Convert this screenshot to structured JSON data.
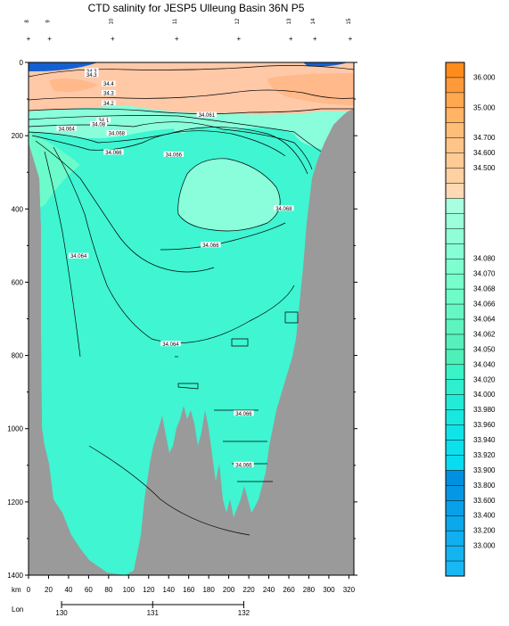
{
  "chart_data": {
    "type": "heatmap",
    "title": "CTD salinity for JESP5 Ulleung Basin 36N P5",
    "y_ticks": [
      0,
      200,
      400,
      600,
      800,
      1000,
      1200,
      1400
    ],
    "ylim": [
      1400,
      0
    ],
    "x_label": "km",
    "x_ticks": [
      0,
      20,
      40,
      60,
      80,
      100,
      120,
      140,
      160,
      180,
      200,
      220,
      240,
      260,
      280,
      300,
      320
    ],
    "xlim": [
      0,
      325
    ],
    "lon_label": "Lon",
    "lon_ticks": [
      {
        "label": "130",
        "km": 33
      },
      {
        "label": "131",
        "km": 124
      },
      {
        "label": "132",
        "km": 215
      }
    ],
    "station_numbers": [
      {
        "label": "8",
        "km": 0
      },
      {
        "label": "9",
        "km": 21
      },
      {
        "label": "10",
        "km": 84
      },
      {
        "label": "11",
        "km": 148
      },
      {
        "label": "12",
        "km": 210
      },
      {
        "label": "13",
        "km": 262
      },
      {
        "label": "14",
        "km": 286
      },
      {
        "label": "15",
        "km": 325
      }
    ],
    "contour_labels": [
      {
        "text": "34.3",
        "km": 63,
        "depth": 25
      },
      {
        "text": "34.3",
        "km": 63,
        "depth": 35
      },
      {
        "text": "34.4",
        "km": 80,
        "depth": 60
      },
      {
        "text": "34.3",
        "km": 80,
        "depth": 85
      },
      {
        "text": "34.2",
        "km": 80,
        "depth": 113
      },
      {
        "text": "34.1",
        "km": 75,
        "depth": 160
      },
      {
        "text": "34.08",
        "km": 70,
        "depth": 170
      },
      {
        "text": "34.068",
        "km": 88,
        "depth": 195
      },
      {
        "text": "34.064",
        "km": 38,
        "depth": 182
      },
      {
        "text": "34.066",
        "km": 85,
        "depth": 247
      },
      {
        "text": "34.066",
        "km": 145,
        "depth": 253
      },
      {
        "text": "34.061",
        "km": 178,
        "depth": 145
      },
      {
        "text": "34.068",
        "km": 255,
        "depth": 400
      },
      {
        "text": "34.066",
        "km": 182,
        "depth": 500
      },
      {
        "text": "34.064",
        "km": 50,
        "depth": 530
      },
      {
        "text": "34.064",
        "km": 142,
        "depth": 770
      },
      {
        "text": "34.066",
        "km": 215,
        "depth": 960
      },
      {
        "text": "34.066",
        "km": 215,
        "depth": 1100
      }
    ],
    "colorbar": {
      "labels": [
        {
          "text": "36.000",
          "index": 1
        },
        {
          "text": "35.000",
          "index": 3
        },
        {
          "text": "34.700",
          "index": 5
        },
        {
          "text": "34.600",
          "index": 6
        },
        {
          "text": "34.500",
          "index": 7
        },
        {
          "text": "34.080",
          "index": 13
        },
        {
          "text": "34.070",
          "index": 14
        },
        {
          "text": "34.068",
          "index": 15
        },
        {
          "text": "34.066",
          "index": 16
        },
        {
          "text": "34.064",
          "index": 17
        },
        {
          "text": "34.062",
          "index": 18
        },
        {
          "text": "34.050",
          "index": 19
        },
        {
          "text": "34.040",
          "index": 20
        },
        {
          "text": "34.020",
          "index": 21
        },
        {
          "text": "34.000",
          "index": 22
        },
        {
          "text": "33.980",
          "index": 23
        },
        {
          "text": "33.960",
          "index": 24
        },
        {
          "text": "33.940",
          "index": 25
        },
        {
          "text": "33.920",
          "index": 26
        },
        {
          "text": "33.900",
          "index": 27
        },
        {
          "text": "33.800",
          "index": 28
        },
        {
          "text": "33.600",
          "index": 29
        },
        {
          "text": "33.400",
          "index": 30
        },
        {
          "text": "33.200",
          "index": 31
        },
        {
          "text": "33.000",
          "index": 32
        }
      ],
      "colors": [
        "#ff8c1a",
        "#ff9a3a",
        "#ffa850",
        "#ffb466",
        "#ffbe78",
        "#ffc488",
        "#ffca94",
        "#ffd0a0",
        "#ffd8b4",
        "#a8ffe0",
        "#9cffdc",
        "#90ffd8",
        "#86ffd4",
        "#7effd0",
        "#76ffcc",
        "#6efcc8",
        "#66f8c4",
        "#5ef4c0",
        "#56f0bc",
        "#4ef0b8",
        "#3af4c8",
        "#2ef0d0",
        "#22ecd8",
        "#18e8e0",
        "#10e4e8",
        "#0ce0ec",
        "#08dcf0",
        "#0090e0",
        "#0498e4",
        "#08a0e8",
        "#0ca8ec",
        "#10b0f0",
        "#14b4f0",
        "#18b8f4"
      ]
    },
    "colors": {
      "land": "#9a9a9a",
      "background_water": "#3ff5d2",
      "intermediate": "#8afedb",
      "surface_warm": "#ffc9a8",
      "surface_hot": "#ffb98a",
      "surface_fresh": "#1560d0"
    }
  }
}
